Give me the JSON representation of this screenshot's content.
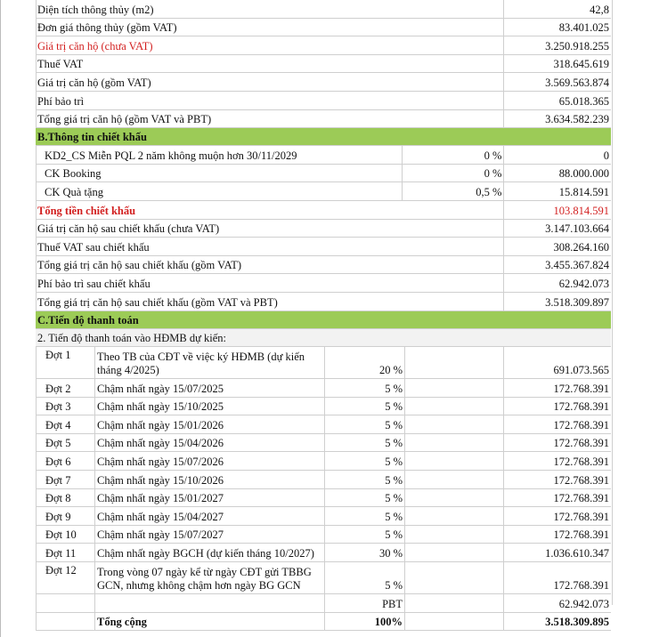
{
  "summary": [
    {
      "label": "Diện tích thông thủy (m2)",
      "value": "42,8",
      "red": false
    },
    {
      "label": "Đơn giá thông thủy (gồm VAT)",
      "value": "83.401.025",
      "red": false
    },
    {
      "label": "Giá trị căn hộ (chưa VAT)",
      "value": "3.250.918.255",
      "red": true
    },
    {
      "label": "Thuế VAT",
      "value": "318.645.619",
      "red": false
    },
    {
      "label": "Giá trị căn hộ (gồm VAT)",
      "value": "3.569.563.874",
      "red": false
    },
    {
      "label": "Phí bảo trì",
      "value": "65.018.365",
      "red": false
    },
    {
      "label": "Tổng giá trị căn hộ (gồm VAT và PBT)",
      "value": "3.634.582.239",
      "red": false
    }
  ],
  "section_b": {
    "title": "B.Thông tin chiết khấu",
    "discounts": [
      {
        "label": "KD2_CS Miễn PQL 2 năm không muộn hơn 30/11/2029",
        "pct": "0 %",
        "value": "0"
      },
      {
        "label": "CK Booking",
        "pct": "0 %",
        "value": "88.000.000"
      },
      {
        "label": "CK Quà tặng",
        "pct": "0,5 %",
        "value": "15.814.591"
      }
    ],
    "total_label": "Tổng tiền chiết khấu",
    "total_value": "103.814.591",
    "after": [
      {
        "label": "Giá trị căn hộ sau chiết khấu (chưa VAT)",
        "value": "3.147.103.664"
      },
      {
        "label": "Thuế VAT sau chiết khấu",
        "value": "308.264.160"
      },
      {
        "label": "Tổng giá trị căn hộ sau chiết khấu (gồm VAT)",
        "value": "3.455.367.824"
      },
      {
        "label": "Phí bảo trì sau chiết khấu",
        "value": "62.942.073"
      },
      {
        "label": "Tổng giá trị căn hộ sau chiết khấu (gồm VAT và PBT)",
        "value": "3.518.309.897"
      }
    ]
  },
  "section_c": {
    "title": "C.Tiến độ thanh toán",
    "subtitle": "2. Tiến độ thanh toán vào HĐMB dự kiến:",
    "installments": [
      {
        "no": "Đợt 1",
        "desc": "Theo TB của CĐT về việc ký HĐMB (dự kiến tháng 4/2025)",
        "pct": "20 %",
        "amount": "691.073.565",
        "tall": true
      },
      {
        "no": "Đợt 2",
        "desc": "Chậm nhất ngày 15/07/2025",
        "pct": "5 %",
        "amount": "172.768.391",
        "tall": false
      },
      {
        "no": "Đợt 3",
        "desc": "Chậm nhất ngày 15/10/2025",
        "pct": "5 %",
        "amount": "172.768.391",
        "tall": false
      },
      {
        "no": "Đợt 4",
        "desc": "Chậm nhất ngày 15/01/2026",
        "pct": "5 %",
        "amount": "172.768.391",
        "tall": false
      },
      {
        "no": "Đợt 5",
        "desc": "Chậm nhất ngày 15/04/2026",
        "pct": "5 %",
        "amount": "172.768.391",
        "tall": false
      },
      {
        "no": "Đợt 6",
        "desc": "Chậm nhất ngày 15/07/2026",
        "pct": "5 %",
        "amount": "172.768.391",
        "tall": false
      },
      {
        "no": "Đợt 7",
        "desc": "Chậm nhất ngày 15/10/2026",
        "pct": "5 %",
        "amount": "172.768.391",
        "tall": false
      },
      {
        "no": "Đợt 8",
        "desc": "Chậm nhất ngày 15/01/2027",
        "pct": "5 %",
        "amount": "172.768.391",
        "tall": false
      },
      {
        "no": "Đợt 9",
        "desc": "Chậm nhất ngày 15/04/2027",
        "pct": "5 %",
        "amount": "172.768.391",
        "tall": false
      },
      {
        "no": "Đợt 10",
        "desc": "Chậm nhất ngày 15/07/2027",
        "pct": "5 %",
        "amount": "172.768.391",
        "tall": false
      },
      {
        "no": "Đợt 11",
        "desc": "Chậm nhất ngày BGCH (dự kiến tháng 10/2027)",
        "pct": "30 %",
        "amount": "1.036.610.347",
        "tall": false
      },
      {
        "no": "Đợt 12",
        "desc": "Trong vòng 07 ngày kể từ ngày CĐT gửi TBBG GCN, nhưng không chậm hơn ngày BG GCN",
        "pct": "5 %",
        "amount": "172.768.391",
        "tall": true
      }
    ],
    "pbt_label": "PBT",
    "pbt_value": "62.942.073",
    "total_label": "Tổng cộng",
    "total_pct": "100%",
    "total_value": "3.518.309.895"
  }
}
